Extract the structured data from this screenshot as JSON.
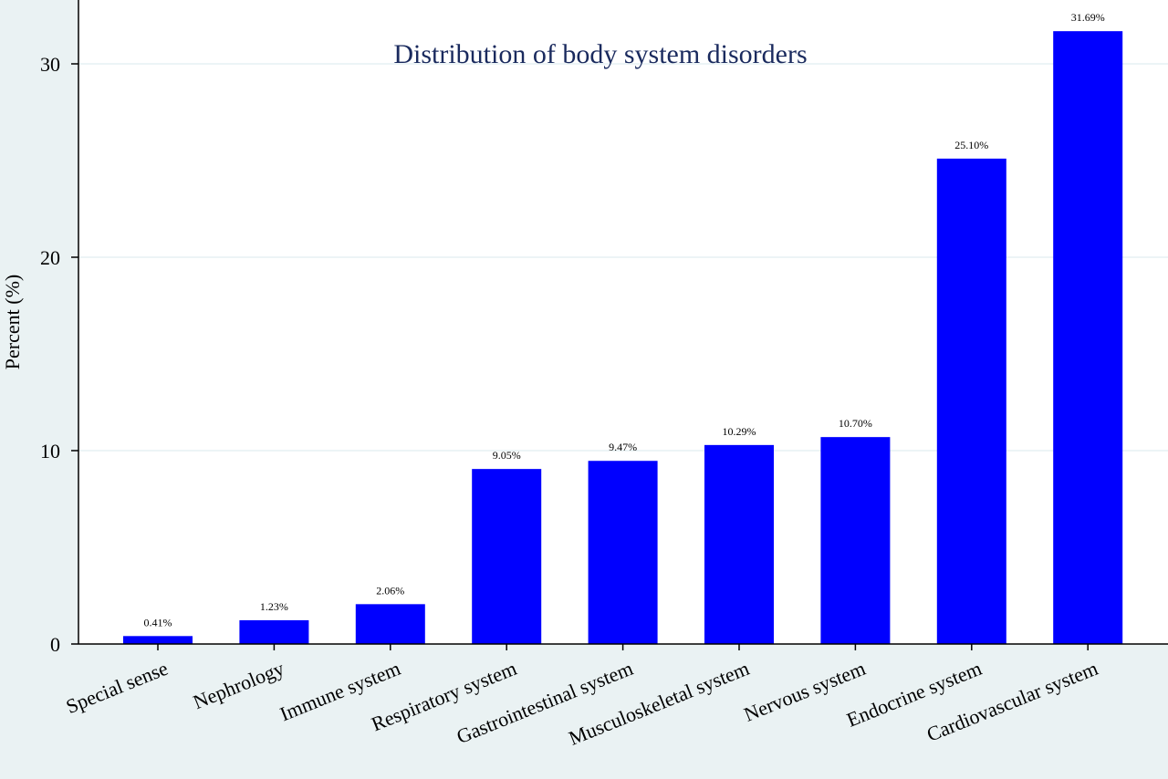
{
  "chart_data": {
    "type": "bar",
    "title": "Distribution of body system disorders",
    "xlabel": "",
    "ylabel": "Percent (%)",
    "ylim": [
      0,
      33
    ],
    "yticks": [
      0,
      10,
      20,
      30
    ],
    "grid": true,
    "bar_color": "#0000ff",
    "categories": [
      "Special sense",
      "Nephrology",
      "Immune system",
      "Respiratory system",
      "Gastrointestinal system",
      "Musculoskeletal system",
      "Nervous system",
      "Endocrine system",
      "Cardiovascular system"
    ],
    "values": [
      0.41,
      1.23,
      2.06,
      9.05,
      9.47,
      10.29,
      10.7,
      25.1,
      31.69
    ],
    "data_labels": [
      "0.41%",
      "1.23%",
      "2.06%",
      "9.05%",
      "9.47%",
      "10.29%",
      "10.70%",
      "25.10%",
      "31.69%"
    ]
  }
}
